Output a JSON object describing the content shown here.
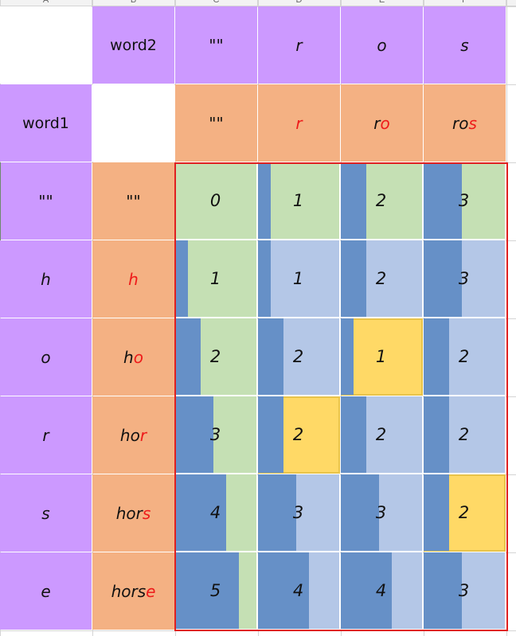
{
  "columns": [
    "A",
    "B",
    "C",
    "D",
    "E",
    "F"
  ],
  "labels": {
    "word2": "word2",
    "word1": "word1"
  },
  "word2_chars": [
    "\"\"",
    "r",
    "o",
    "s"
  ],
  "word1_chars": [
    "\"\"",
    "h",
    "o",
    "r",
    "s",
    "e"
  ],
  "prefix_row": [
    {
      "pre": "\"\"",
      "red": ""
    },
    {
      "pre": "",
      "red": "r"
    },
    {
      "pre": "r",
      "red": "o"
    },
    {
      "pre": "ro",
      "red": "s"
    }
  ],
  "prefix_col": [
    {
      "pre": "\"\"",
      "red": ""
    },
    {
      "pre": "",
      "red": "h"
    },
    {
      "pre": "h",
      "red": "o"
    },
    {
      "pre": "ho",
      "red": "r"
    },
    {
      "pre": "hor",
      "red": "s"
    },
    {
      "pre": "hors",
      "red": "e"
    }
  ],
  "dp_values": [
    [
      0,
      1,
      2,
      3
    ],
    [
      1,
      1,
      2,
      3
    ],
    [
      2,
      2,
      1,
      2
    ],
    [
      3,
      2,
      2,
      2
    ],
    [
      4,
      3,
      3,
      2
    ],
    [
      5,
      4,
      4,
      3
    ]
  ],
  "highlighted_cells": [
    [
      2,
      2
    ],
    [
      3,
      1
    ],
    [
      4,
      3
    ]
  ],
  "colors": {
    "purple": "#cc99ff",
    "orange": "#f4b183",
    "green": "#c5e0b4",
    "lightblue": "#b4c7e7",
    "bar": "#6690c7",
    "highlight": "#ffd966",
    "frame": "#e02020"
  }
}
